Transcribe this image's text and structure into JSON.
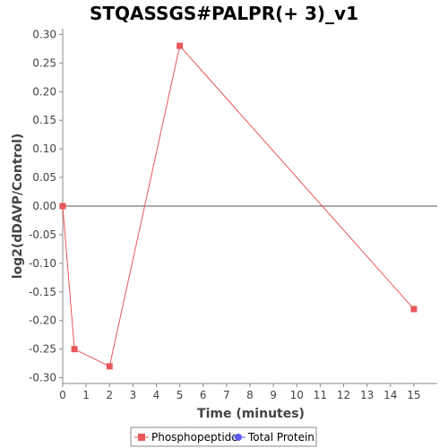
{
  "chart_data": {
    "type": "line",
    "title": "STQASSGS#PALPR(+ 3)_v1",
    "xlabel": "Time (minutes)",
    "ylabel": "log2(dDAVP/Control)",
    "xlim": [
      0,
      16
    ],
    "ylim": [
      -0.31,
      0.31
    ],
    "x_ticks": [
      0,
      1,
      2,
      3,
      4,
      5,
      6,
      7,
      8,
      9,
      10,
      11,
      12,
      13,
      14,
      15
    ],
    "x_tick_labels": [
      "0",
      "1",
      "2",
      "3",
      "4",
      "5",
      "6",
      "7",
      "8",
      "9",
      "10",
      "11",
      "12",
      "13",
      "14",
      "15"
    ],
    "y_ticks": [
      -0.3,
      -0.25,
      -0.2,
      -0.15,
      -0.1,
      -0.05,
      0.0,
      0.05,
      0.1,
      0.15,
      0.2,
      0.25,
      0.3
    ],
    "y_tick_labels": [
      "-0.30",
      "-0.25",
      "-0.20",
      "-0.15",
      "-0.10",
      "-0.05",
      "0.00",
      "0.05",
      "0.10",
      "0.15",
      "0.20",
      "0.25",
      "0.30"
    ],
    "grid": false,
    "zero_line": true,
    "legend_position": "bottom-center",
    "series": [
      {
        "name": "Phosphopeptide",
        "color": "#e8585a",
        "marker": "square",
        "x": [
          0,
          0.5,
          2,
          5,
          15
        ],
        "y": [
          0.0,
          -0.25,
          -0.28,
          0.28,
          -0.18
        ]
      },
      {
        "name": "Total Protein",
        "color": "#5b5bf0",
        "marker": "circle",
        "x": [],
        "y": []
      }
    ]
  }
}
